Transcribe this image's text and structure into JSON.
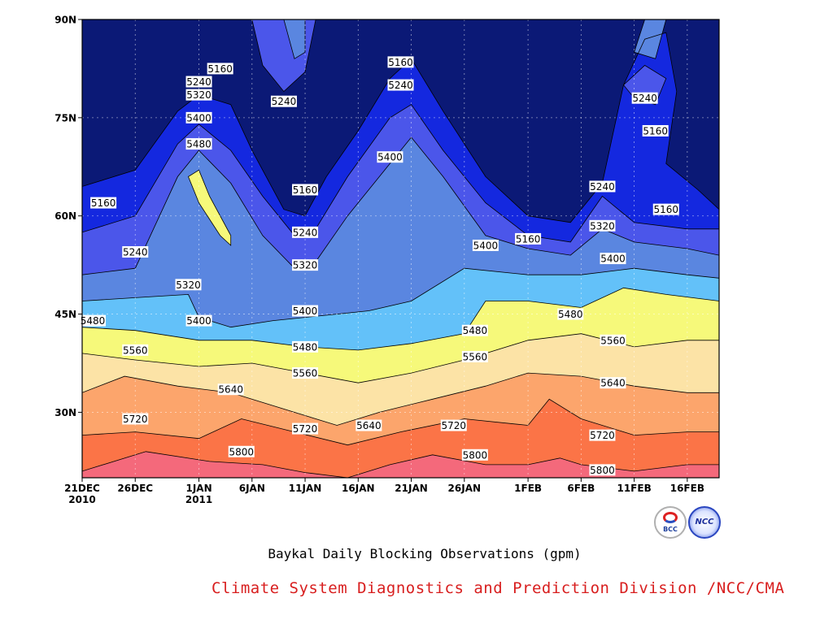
{
  "chart_data": {
    "type": "heatmap",
    "title": "Baykal Daily Blocking Observations (gpm)",
    "credit": "Climate System Diagnostics and Prediction Division /NCC/CMA",
    "logos": [
      "BCC",
      "NCC"
    ],
    "x_dates": [
      "2010-12-21",
      "2011-02-19"
    ],
    "x_tick_labels": [
      {
        "date": "2010-12-21",
        "line1": "21DEC",
        "line2": "2010"
      },
      {
        "date": "2010-12-26",
        "line1": "26DEC",
        "line2": ""
      },
      {
        "date": "2011-01-01",
        "line1": "1JAN",
        "line2": "2011"
      },
      {
        "date": "2011-01-06",
        "line1": "6JAN",
        "line2": ""
      },
      {
        "date": "2011-01-11",
        "line1": "11JAN",
        "line2": ""
      },
      {
        "date": "2011-01-16",
        "line1": "16JAN",
        "line2": ""
      },
      {
        "date": "2011-01-21",
        "line1": "21JAN",
        "line2": ""
      },
      {
        "date": "2011-01-26",
        "line1": "26JAN",
        "line2": ""
      },
      {
        "date": "2011-02-01",
        "line1": "1FEB",
        "line2": ""
      },
      {
        "date": "2011-02-06",
        "line1": "6FEB",
        "line2": ""
      },
      {
        "date": "2011-02-11",
        "line1": "11FEB",
        "line2": ""
      },
      {
        "date": "2011-02-16",
        "line1": "16FEB",
        "line2": ""
      }
    ],
    "y_tick_labels": [
      {
        "lat": 30,
        "label": "30N"
      },
      {
        "lat": 45,
        "label": "45N"
      },
      {
        "lat": 60,
        "label": "60N"
      },
      {
        "lat": 75,
        "label": "75N"
      },
      {
        "lat": 90,
        "label": "90N"
      }
    ],
    "ylim": [
      20,
      90
    ],
    "grid": true,
    "contour_levels": [
      5160,
      5240,
      5320,
      5400,
      5480,
      5560,
      5640,
      5720,
      5800
    ],
    "fill_colors": {
      "below_5160": "#0b1976",
      "5160_5240": "#1428df",
      "5240_5320": "#4b56ea",
      "5320_5400": "#5a86e0",
      "5400_5480": "#63c1f9",
      "5480_5560": "#f6f97a",
      "5560_5640": "#fce3a6",
      "5640_5720": "#fca56c",
      "5720_5800": "#fb7447",
      "above_5800": "#f4697b"
    },
    "series": [
      {
        "value": 5160,
        "points": [
          [
            "2010-12-21",
            64.5
          ],
          [
            "2010-12-26",
            67
          ],
          [
            "2010-12-30",
            76
          ],
          [
            "2011-01-01",
            78.5
          ],
          [
            "2011-01-04",
            77
          ],
          [
            "2011-01-06",
            70
          ],
          [
            "2011-01-09",
            61
          ],
          [
            "2011-01-11",
            60
          ],
          [
            "2011-01-13",
            66
          ],
          [
            "2011-01-16",
            73
          ],
          [
            "2011-01-19",
            81
          ],
          [
            "2011-01-21",
            84
          ],
          [
            "2011-01-24",
            76
          ],
          [
            "2011-01-28",
            66
          ],
          [
            "2011-02-01",
            60
          ],
          [
            "2011-02-05",
            59
          ],
          [
            "2011-02-08",
            65
          ],
          [
            "2011-02-10",
            80
          ],
          [
            "2011-02-12",
            87
          ],
          [
            "2011-02-14",
            88
          ],
          [
            "2011-02-15",
            79
          ],
          [
            "2011-02-14",
            68
          ],
          [
            "2011-02-17",
            64
          ],
          [
            "2011-02-19",
            61
          ]
        ]
      },
      {
        "value": 5240,
        "points": [
          [
            "2010-12-21",
            57.5
          ],
          [
            "2010-12-26",
            60
          ],
          [
            "2010-12-30",
            71
          ],
          [
            "2011-01-01",
            74
          ],
          [
            "2011-01-04",
            70
          ],
          [
            "2011-01-07",
            63
          ],
          [
            "2011-01-10",
            57
          ],
          [
            "2011-01-12",
            58
          ],
          [
            "2011-01-15",
            66
          ],
          [
            "2011-01-19",
            75
          ],
          [
            "2011-01-21",
            77
          ],
          [
            "2011-01-24",
            70
          ],
          [
            "2011-01-28",
            62
          ],
          [
            "2011-02-01",
            57
          ],
          [
            "2011-02-05",
            56
          ],
          [
            "2011-02-08",
            63
          ],
          [
            "2011-02-11",
            59
          ],
          [
            "2011-02-16",
            58
          ],
          [
            "2011-02-19",
            58
          ]
        ]
      },
      {
        "value": 5320,
        "points": [
          [
            "2010-12-21",
            51
          ],
          [
            "2010-12-26",
            52
          ],
          [
            "2010-12-30",
            66
          ],
          [
            "2011-01-01",
            70
          ],
          [
            "2011-01-04",
            65
          ],
          [
            "2011-01-07",
            57
          ],
          [
            "2011-01-10",
            52
          ],
          [
            "2011-01-12",
            53
          ],
          [
            "2011-01-15",
            60
          ],
          [
            "2011-01-19",
            68
          ],
          [
            "2011-01-21",
            72
          ],
          [
            "2011-01-24",
            66
          ],
          [
            "2011-01-28",
            57
          ],
          [
            "2011-02-01",
            55
          ],
          [
            "2011-02-05",
            54
          ],
          [
            "2011-02-08",
            58
          ],
          [
            "2011-02-11",
            56
          ],
          [
            "2011-02-16",
            55
          ],
          [
            "2011-02-19",
            54
          ]
        ]
      },
      {
        "value": 5400,
        "points": [
          [
            "2010-12-21",
            47
          ],
          [
            "2010-12-26",
            47.5
          ],
          [
            "2010-12-31",
            48
          ],
          [
            "2011-01-01",
            44.5
          ],
          [
            "2011-01-04",
            43
          ],
          [
            "2011-01-08",
            44
          ],
          [
            "2011-01-11",
            44.5
          ],
          [
            "2011-01-14",
            45
          ],
          [
            "2011-01-17",
            45.5
          ],
          [
            "2011-01-21",
            47
          ],
          [
            "2011-01-26",
            52
          ],
          [
            "2011-02-01",
            51
          ],
          [
            "2011-02-06",
            51
          ],
          [
            "2011-02-11",
            52
          ],
          [
            "2011-02-16",
            51
          ],
          [
            "2011-02-19",
            50.5
          ]
        ]
      },
      {
        "value": 5480,
        "points": [
          [
            "2010-12-21",
            43
          ],
          [
            "2010-12-26",
            42.5
          ],
          [
            "2011-01-01",
            41
          ],
          [
            "2011-01-06",
            41
          ],
          [
            "2011-01-11",
            40
          ],
          [
            "2011-01-16",
            39.5
          ],
          [
            "2011-01-21",
            40.5
          ],
          [
            "2011-01-26",
            42
          ],
          [
            "2011-01-28",
            47
          ],
          [
            "2011-02-01",
            47
          ],
          [
            "2011-02-06",
            46
          ],
          [
            "2011-02-10",
            49
          ],
          [
            "2011-02-14",
            48
          ],
          [
            "2011-02-19",
            47
          ]
        ]
      },
      {
        "value": 5560,
        "points": [
          [
            "2010-12-21",
            39
          ],
          [
            "2010-12-26",
            38
          ],
          [
            "2011-01-01",
            37
          ],
          [
            "2011-01-06",
            37.5
          ],
          [
            "2011-01-11",
            36
          ],
          [
            "2011-01-16",
            34.5
          ],
          [
            "2011-01-21",
            36
          ],
          [
            "2011-01-26",
            38
          ],
          [
            "2011-02-01",
            41
          ],
          [
            "2011-02-06",
            42
          ],
          [
            "2011-02-11",
            40
          ],
          [
            "2011-02-16",
            41
          ],
          [
            "2011-02-19",
            41
          ]
        ]
      },
      {
        "value": 5640,
        "points": [
          [
            "2010-12-21",
            33
          ],
          [
            "2010-12-25",
            35.5
          ],
          [
            "2010-12-30",
            34
          ],
          [
            "2011-01-04",
            33
          ],
          [
            "2011-01-09",
            30.5
          ],
          [
            "2011-01-14",
            28
          ],
          [
            "2011-01-18",
            30
          ],
          [
            "2011-01-23",
            32
          ],
          [
            "2011-01-28",
            34
          ],
          [
            "2011-02-01",
            36
          ],
          [
            "2011-02-06",
            35.5
          ],
          [
            "2011-02-11",
            34
          ],
          [
            "2011-02-16",
            33
          ],
          [
            "2011-02-19",
            33
          ]
        ]
      },
      {
        "value": 5720,
        "points": [
          [
            "2010-12-21",
            26.5
          ],
          [
            "2010-12-26",
            27
          ],
          [
            "2011-01-01",
            26
          ],
          [
            "2011-01-05",
            29
          ],
          [
            "2011-01-10",
            27
          ],
          [
            "2011-01-15",
            25
          ],
          [
            "2011-01-20",
            27
          ],
          [
            "2011-01-26",
            29
          ],
          [
            "2011-02-01",
            28
          ],
          [
            "2011-02-03",
            32
          ],
          [
            "2011-02-06",
            29
          ],
          [
            "2011-02-11",
            26.5
          ],
          [
            "2011-02-16",
            27
          ],
          [
            "2011-02-19",
            27
          ]
        ]
      },
      {
        "value": 5800,
        "points": [
          [
            "2010-12-21",
            21
          ],
          [
            "2010-12-27",
            24
          ],
          [
            "2011-01-02",
            22.5
          ],
          [
            "2011-01-07",
            22
          ],
          [
            "2011-01-11",
            20.8
          ],
          [
            "2011-01-15",
            20
          ],
          [
            "2011-01-19",
            22
          ],
          [
            "2011-01-23",
            23.5
          ],
          [
            "2011-01-28",
            22
          ],
          [
            "2011-02-01",
            22
          ],
          [
            "2011-02-04",
            23
          ],
          [
            "2011-02-06",
            22
          ],
          [
            "2011-02-11",
            21
          ],
          [
            "2011-02-16",
            22
          ],
          [
            "2011-02-19",
            22
          ]
        ]
      }
    ],
    "enclosed_regions": [
      {
        "band": "5240_5320",
        "points": [
          [
            "2011-01-06",
            90
          ],
          [
            "2011-01-07",
            83
          ],
          [
            "2011-01-09",
            79
          ],
          [
            "2011-01-11",
            82
          ],
          [
            "2011-01-12",
            90
          ]
        ]
      },
      {
        "band": "5320_5400",
        "points": [
          [
            "2011-01-09",
            90
          ],
          [
            "2011-01-10",
            84
          ],
          [
            "2011-01-11",
            85
          ],
          [
            "2011-01-11",
            90
          ]
        ]
      },
      {
        "band": "5240_5320",
        "points": [
          [
            "2011-02-10",
            80
          ],
          [
            "2011-02-12",
            83
          ],
          [
            "2011-02-14",
            81
          ],
          [
            "2011-02-13",
            77
          ],
          [
            "2011-02-11",
            78
          ]
        ]
      },
      {
        "band": "5320_5400",
        "points": [
          [
            "2011-02-11",
            85
          ],
          [
            "2011-02-12",
            90
          ],
          [
            "2011-02-14",
            90
          ],
          [
            "2011-02-13",
            84
          ]
        ]
      },
      {
        "band": "5480_5560",
        "points": [
          [
            "2011-01-01",
            67
          ],
          [
            "2011-01-02",
            63
          ],
          [
            "2011-01-04",
            57
          ],
          [
            "2011-01-04",
            55.5
          ],
          [
            "2011-01-03",
            57
          ],
          [
            "2011-01-01",
            62
          ],
          [
            "2010-12-31",
            66
          ]
        ]
      }
    ],
    "contour_labels": [
      {
        "text": "5160",
        "date": "2010-12-23",
        "lat": 62
      },
      {
        "text": "5240",
        "date": "2010-12-26",
        "lat": 54.5
      },
      {
        "text": "5320",
        "date": "2010-12-31",
        "lat": 49.5
      },
      {
        "text": "5480",
        "date": "2010-12-22",
        "lat": 44
      },
      {
        "text": "5400",
        "date": "2011-01-01",
        "lat": 44
      },
      {
        "text": "5560",
        "date": "2010-12-26",
        "lat": 39.5
      },
      {
        "text": "5720",
        "date": "2010-12-26",
        "lat": 29
      },
      {
        "text": "5160",
        "date": "2011-01-03",
        "lat": 82.5
      },
      {
        "text": "5240",
        "date": "2011-01-01",
        "lat": 80.5
      },
      {
        "text": "5320",
        "date": "2011-01-01",
        "lat": 78.5
      },
      {
        "text": "5400",
        "date": "2011-01-01",
        "lat": 75
      },
      {
        "text": "5480",
        "date": "2011-01-01",
        "lat": 71
      },
      {
        "text": "5240",
        "date": "2011-01-09",
        "lat": 77.5
      },
      {
        "text": "5160",
        "date": "2011-01-11",
        "lat": 64
      },
      {
        "text": "5240",
        "date": "2011-01-11",
        "lat": 57.5
      },
      {
        "text": "5320",
        "date": "2011-01-11",
        "lat": 52.5
      },
      {
        "text": "5400",
        "date": "2011-01-11",
        "lat": 45.5
      },
      {
        "text": "5480",
        "date": "2011-01-11",
        "lat": 40
      },
      {
        "text": "5560",
        "date": "2011-01-11",
        "lat": 36
      },
      {
        "text": "5720",
        "date": "2011-01-11",
        "lat": 27.5
      },
      {
        "text": "5640",
        "date": "2011-01-04",
        "lat": 33.5
      },
      {
        "text": "5800",
        "date": "2011-01-05",
        "lat": 24
      },
      {
        "text": "5640",
        "date": "2011-01-17",
        "lat": 28
      },
      {
        "text": "5160",
        "date": "2011-01-20",
        "lat": 83.5
      },
      {
        "text": "5240",
        "date": "2011-01-20",
        "lat": 80
      },
      {
        "text": "5400",
        "date": "2011-01-19",
        "lat": 69
      },
      {
        "text": "5720",
        "date": "2011-01-25",
        "lat": 28
      },
      {
        "text": "5800",
        "date": "2011-01-27",
        "lat": 23.5
      },
      {
        "text": "5480",
        "date": "2011-01-27",
        "lat": 42.5
      },
      {
        "text": "5560",
        "date": "2011-01-27",
        "lat": 38.5
      },
      {
        "text": "5400",
        "date": "2011-01-28",
        "lat": 55.5
      },
      {
        "text": "5160",
        "date": "2011-02-01",
        "lat": 56.5
      },
      {
        "text": "5480",
        "date": "2011-02-05",
        "lat": 45
      },
      {
        "text": "5720",
        "date": "2011-02-08",
        "lat": 26.5
      },
      {
        "text": "5800",
        "date": "2011-02-08",
        "lat": 21.2
      },
      {
        "text": "5240",
        "date": "2011-02-08",
        "lat": 64.5
      },
      {
        "text": "5320",
        "date": "2011-02-08",
        "lat": 58.5
      },
      {
        "text": "5400",
        "date": "2011-02-09",
        "lat": 53.5
      },
      {
        "text": "5560",
        "date": "2011-02-09",
        "lat": 41
      },
      {
        "text": "5640",
        "date": "2011-02-09",
        "lat": 34.5
      },
      {
        "text": "5240",
        "date": "2011-02-12",
        "lat": 78
      },
      {
        "text": "5160",
        "date": "2011-02-13",
        "lat": 73
      },
      {
        "text": "5160",
        "date": "2011-02-14",
        "lat": 61
      }
    ]
  }
}
